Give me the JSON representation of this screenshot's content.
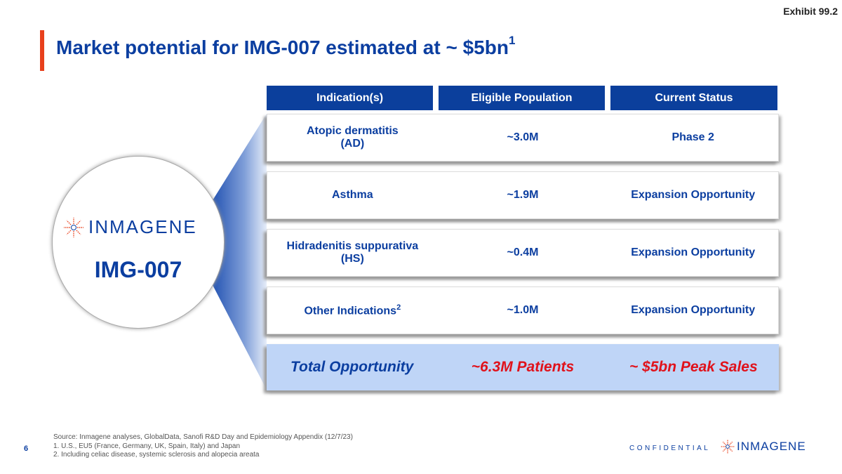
{
  "exhibit": "Exhibit 99.2",
  "title": "Market potential for IMG-007 estimated at ~ $5bn",
  "title_sup": "1",
  "headers": [
    "Indication(s)",
    "Eligible Population",
    "Current Status"
  ],
  "rows": [
    {
      "indication": "Atopic dermatitis",
      "indication2": "(AD)",
      "population": "~3.0M",
      "status": "Phase 2"
    },
    {
      "indication": "Asthma",
      "indication2": "",
      "population": "~1.9M",
      "status": "Expansion Opportunity"
    },
    {
      "indication": "Hidradenitis suppurativa",
      "indication2": "(HS)",
      "population": "~0.4M",
      "status": "Expansion Opportunity"
    },
    {
      "indication": "Other Indications",
      "indication_sup": "2",
      "indication2": "",
      "population": "~1.0M",
      "status": "Expansion Opportunity"
    }
  ],
  "total": {
    "label": "Total Opportunity",
    "population": "~6.3M Patients",
    "sales": "~ $5bn Peak Sales"
  },
  "product": {
    "logo_text": "INMAGENE",
    "name": "IMG-007"
  },
  "footer": {
    "source": "Source: Inmagene analyses, GlobalData, Sanofi R&D Day and Epidemiology Appendix (12/7/23)",
    "note1": "1. U.S., EU5 (France, Germany, UK, Spain, Italy) and Japan",
    "note2": "2. Including celiac disease, systemic sclerosis and alopecia areata",
    "page": "6",
    "confidential": "CONFIDENTIAL",
    "logo_text": "INMAGENE"
  },
  "colors": {
    "brand_blue": "#0b3ea0",
    "accent_red": "#e8401c",
    "total_bg": "#bfd5f7",
    "highlight_red": "#e0121b"
  }
}
